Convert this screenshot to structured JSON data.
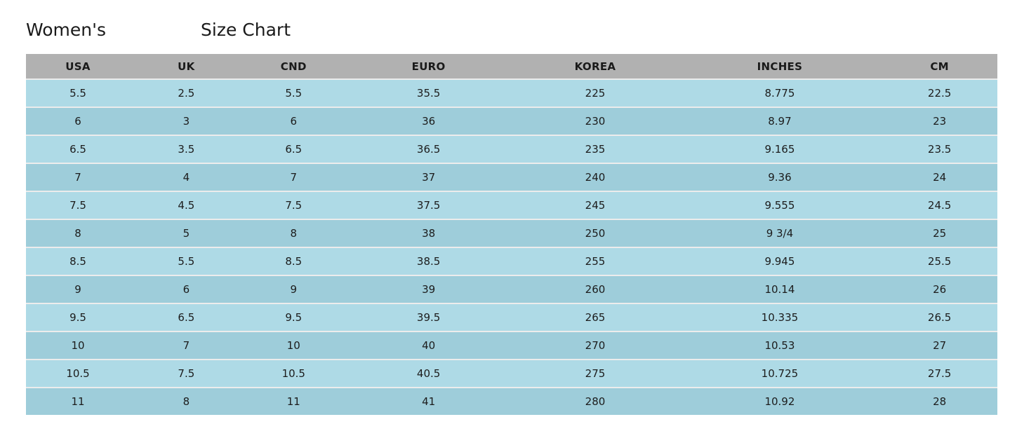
{
  "page": {
    "title_prefix": "Women's",
    "title_suffix": "Size Chart"
  },
  "table": {
    "columns": [
      "USA",
      "UK",
      "CND",
      "EURO",
      "KOREA",
      "INCHES",
      "CM"
    ],
    "rows": [
      [
        "5.5",
        "2.5",
        "5.5",
        "35.5",
        "225",
        "8.775",
        "22.5"
      ],
      [
        "6",
        "3",
        "6",
        "36",
        "230",
        "8.97",
        "23"
      ],
      [
        "6.5",
        "3.5",
        "6.5",
        "36.5",
        "235",
        "9.165",
        "23.5"
      ],
      [
        "7",
        "4",
        "7",
        "37",
        "240",
        "9.36",
        "24"
      ],
      [
        "7.5",
        "4.5",
        "7.5",
        "37.5",
        "245",
        "9.555",
        "24.5"
      ],
      [
        "8",
        "5",
        "8",
        "38",
        "250",
        "9 3/4",
        "25"
      ],
      [
        "8.5",
        "5.5",
        "8.5",
        "38.5",
        "255",
        "9.945",
        "25.5"
      ],
      [
        "9",
        "6",
        "9",
        "39",
        "260",
        "10.14",
        "26"
      ],
      [
        "9.5",
        "6.5",
        "9.5",
        "39.5",
        "265",
        "10.335",
        "26.5"
      ],
      [
        "10",
        "7",
        "10",
        "40",
        "270",
        "10.53",
        "27"
      ],
      [
        "10.5",
        "7.5",
        "10.5",
        "40.5",
        "275",
        "10.725",
        "27.5"
      ],
      [
        "11",
        "8",
        "11",
        "41",
        "280",
        "10.92",
        "28"
      ]
    ]
  },
  "colors": {
    "header_bg": "#b1b1b1",
    "row_light": "#aedae6",
    "row_dark": "#9ecdda",
    "cell_text": "#1c1c1c"
  }
}
